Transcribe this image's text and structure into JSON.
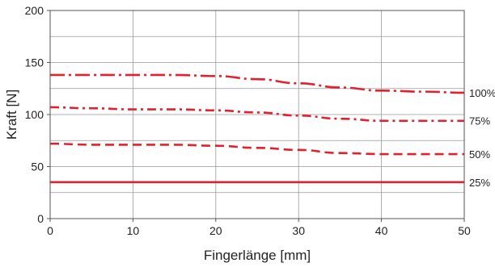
{
  "chart_data": {
    "type": "line",
    "title": "",
    "xlabel": "Fingerlänge [mm]",
    "ylabel": "Kraft [N]",
    "xlim": [
      0,
      50
    ],
    "ylim": [
      0,
      200
    ],
    "xticks": [
      0,
      10,
      20,
      30,
      40,
      50
    ],
    "yticks": [
      0,
      50,
      100,
      150,
      200
    ],
    "grid": true,
    "legend": "right-edge inline labels",
    "line_color": "#e3202e",
    "grid_color": "#999999",
    "series": [
      {
        "name": "100%",
        "dash": "dash-dot-long",
        "points": [
          [
            0,
            138
          ],
          [
            5,
            138
          ],
          [
            10,
            138
          ],
          [
            15,
            138
          ],
          [
            20,
            137
          ],
          [
            25,
            134
          ],
          [
            30,
            130
          ],
          [
            35,
            126
          ],
          [
            40,
            123
          ],
          [
            45,
            122
          ],
          [
            50,
            121
          ]
        ]
      },
      {
        "name": "75%",
        "dash": "dash-dot",
        "points": [
          [
            0,
            107
          ],
          [
            5,
            106
          ],
          [
            10,
            105
          ],
          [
            15,
            105
          ],
          [
            20,
            104
          ],
          [
            25,
            102
          ],
          [
            30,
            99
          ],
          [
            35,
            96
          ],
          [
            40,
            94
          ],
          [
            45,
            94
          ],
          [
            50,
            94
          ]
        ]
      },
      {
        "name": "50%",
        "dash": "dash",
        "points": [
          [
            0,
            72
          ],
          [
            5,
            71
          ],
          [
            10,
            71
          ],
          [
            15,
            71
          ],
          [
            20,
            70
          ],
          [
            25,
            68
          ],
          [
            30,
            66
          ],
          [
            35,
            63
          ],
          [
            40,
            62
          ],
          [
            45,
            62
          ],
          [
            50,
            62
          ]
        ]
      },
      {
        "name": "25%",
        "dash": "solid",
        "points": [
          [
            0,
            35
          ],
          [
            10,
            35
          ],
          [
            20,
            35
          ],
          [
            30,
            35
          ],
          [
            40,
            35
          ],
          [
            50,
            35
          ]
        ]
      }
    ]
  }
}
